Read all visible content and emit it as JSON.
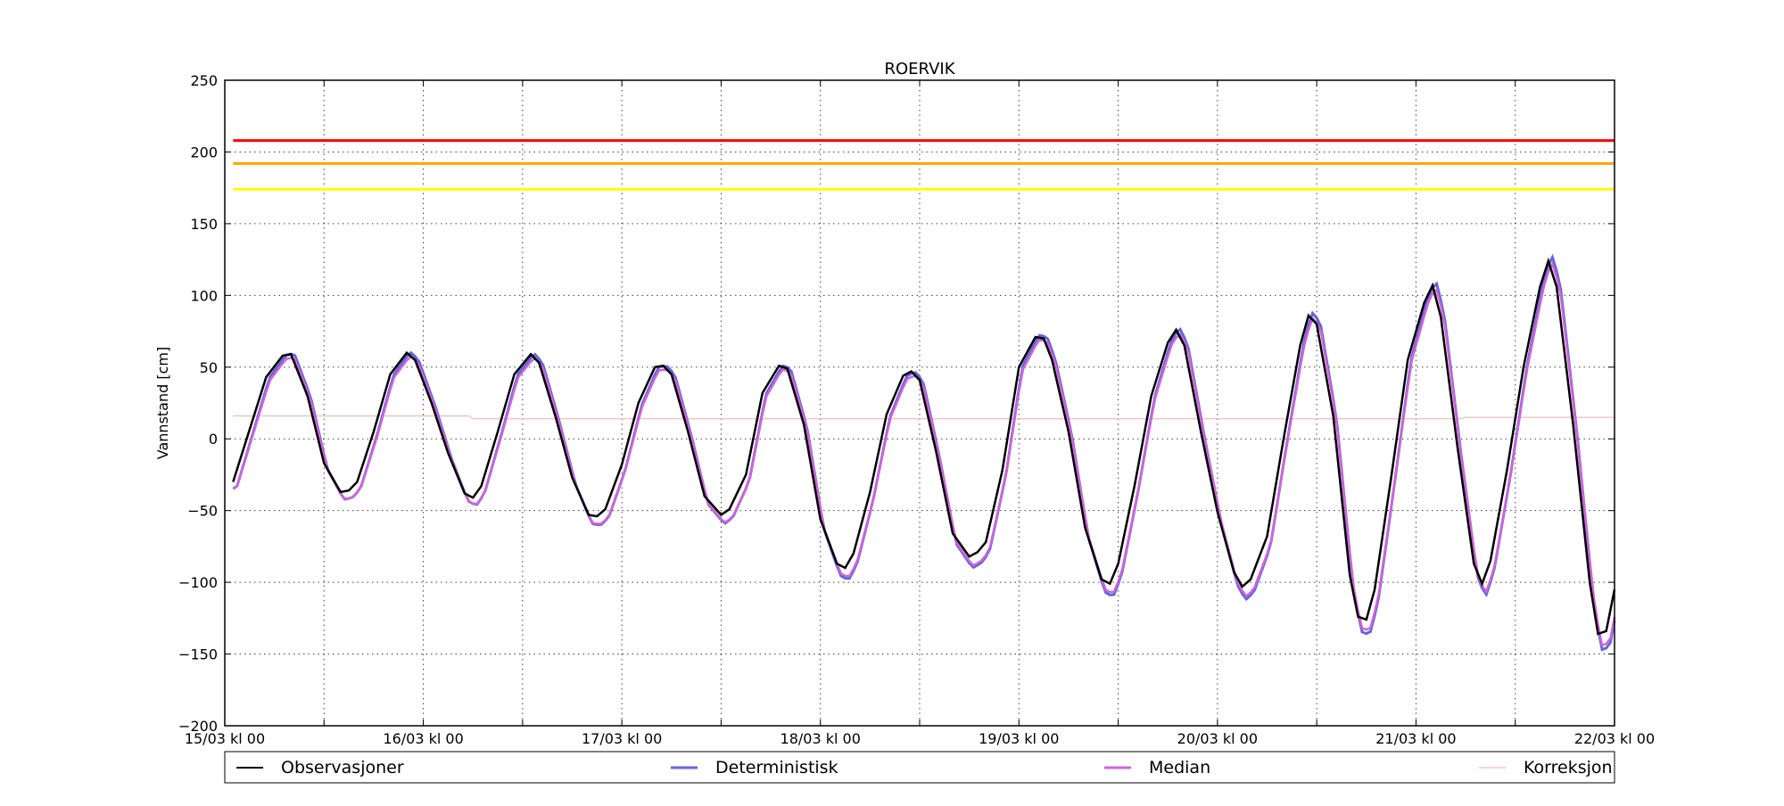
{
  "chart_data": {
    "type": "line",
    "title": "ROERVIK",
    "xlabel": "",
    "ylabel": "Vannstand [cm]",
    "ylim": [
      -200,
      250
    ],
    "yticks": [
      -200,
      -150,
      -100,
      -50,
      0,
      50,
      100,
      150,
      200,
      250
    ],
    "xlim_hours": [
      0,
      168
    ],
    "x_axis_start": "2000-03-15 00:00",
    "xtick_labels": [
      "15/03 kl 00",
      "16/03 kl 00",
      "17/03 kl 00",
      "18/03 kl 00",
      "19/03 kl 00",
      "20/03 kl 00",
      "21/03 kl 00",
      "22/03 kl 00"
    ],
    "grid": true,
    "legend_position": "bottom",
    "legend": [
      "Observasjoner",
      "Deterministisk",
      "Median",
      "Korreksjon"
    ],
    "thresholds": [
      {
        "value": 208,
        "color": "#ff0000"
      },
      {
        "value": 192,
        "color": "#ffa500"
      },
      {
        "value": 174,
        "color": "#ffff00"
      }
    ],
    "series": [
      {
        "name": "Observasjoner",
        "color": "#000000",
        "points": [
          [
            1,
            -30
          ],
          [
            5,
            43
          ],
          [
            7,
            58
          ],
          [
            8,
            59
          ],
          [
            10,
            30
          ],
          [
            12,
            -17
          ],
          [
            14,
            -37
          ],
          [
            15,
            -36
          ],
          [
            16,
            -30
          ],
          [
            18,
            5
          ],
          [
            20,
            45
          ],
          [
            22,
            60
          ],
          [
            23,
            55
          ],
          [
            25,
            25
          ],
          [
            27,
            -10
          ],
          [
            29,
            -38
          ],
          [
            30,
            -41
          ],
          [
            31,
            -33
          ],
          [
            33,
            5
          ],
          [
            35,
            45
          ],
          [
            37,
            59
          ],
          [
            38,
            53
          ],
          [
            40,
            15
          ],
          [
            42,
            -27
          ],
          [
            44,
            -53
          ],
          [
            45,
            -54
          ],
          [
            46,
            -49
          ],
          [
            48,
            -18
          ],
          [
            50,
            25
          ],
          [
            52,
            50
          ],
          [
            53,
            51
          ],
          [
            54,
            45
          ],
          [
            56,
            5
          ],
          [
            58,
            -40
          ],
          [
            60,
            -53
          ],
          [
            61,
            -49
          ],
          [
            63,
            -25
          ],
          [
            65,
            32
          ],
          [
            67,
            51
          ],
          [
            68,
            49
          ],
          [
            70,
            10
          ],
          [
            72,
            -56
          ],
          [
            74,
            -87
          ],
          [
            75,
            -90
          ],
          [
            76,
            -80
          ],
          [
            78,
            -37
          ],
          [
            80,
            17
          ],
          [
            82,
            44
          ],
          [
            83,
            47
          ],
          [
            84,
            41
          ],
          [
            86,
            -9
          ],
          [
            88,
            -66
          ],
          [
            90,
            -82
          ],
          [
            91,
            -79
          ],
          [
            92,
            -72
          ],
          [
            94,
            -22
          ],
          [
            96,
            50
          ],
          [
            98,
            71
          ],
          [
            99,
            70
          ],
          [
            100,
            55
          ],
          [
            102,
            5
          ],
          [
            104,
            -62
          ],
          [
            106,
            -98
          ],
          [
            107,
            -101
          ],
          [
            108,
            -87
          ],
          [
            110,
            -32
          ],
          [
            112,
            30
          ],
          [
            114,
            67
          ],
          [
            115,
            76
          ],
          [
            116,
            65
          ],
          [
            118,
            5
          ],
          [
            120,
            -51
          ],
          [
            122,
            -93
          ],
          [
            123,
            -103
          ],
          [
            124,
            -98
          ],
          [
            126,
            -68
          ],
          [
            128,
            0
          ],
          [
            130,
            65
          ],
          [
            131,
            86
          ],
          [
            132,
            80
          ],
          [
            134,
            16
          ],
          [
            136,
            -95
          ],
          [
            137,
            -124
          ],
          [
            138,
            -126
          ],
          [
            139,
            -105
          ],
          [
            141,
            -27
          ],
          [
            143,
            55
          ],
          [
            145,
            95
          ],
          [
            146,
            107
          ],
          [
            147,
            85
          ],
          [
            149,
            -5
          ],
          [
            151,
            -87
          ],
          [
            152,
            -101
          ],
          [
            153,
            -85
          ],
          [
            155,
            -22
          ],
          [
            157,
            50
          ],
          [
            159,
            106
          ],
          [
            160,
            124
          ],
          [
            161,
            106
          ],
          [
            163,
            10
          ],
          [
            165,
            -100
          ],
          [
            166,
            -136
          ],
          [
            167,
            -134
          ],
          [
            168,
            -105
          ]
        ]
      }
    ]
  }
}
